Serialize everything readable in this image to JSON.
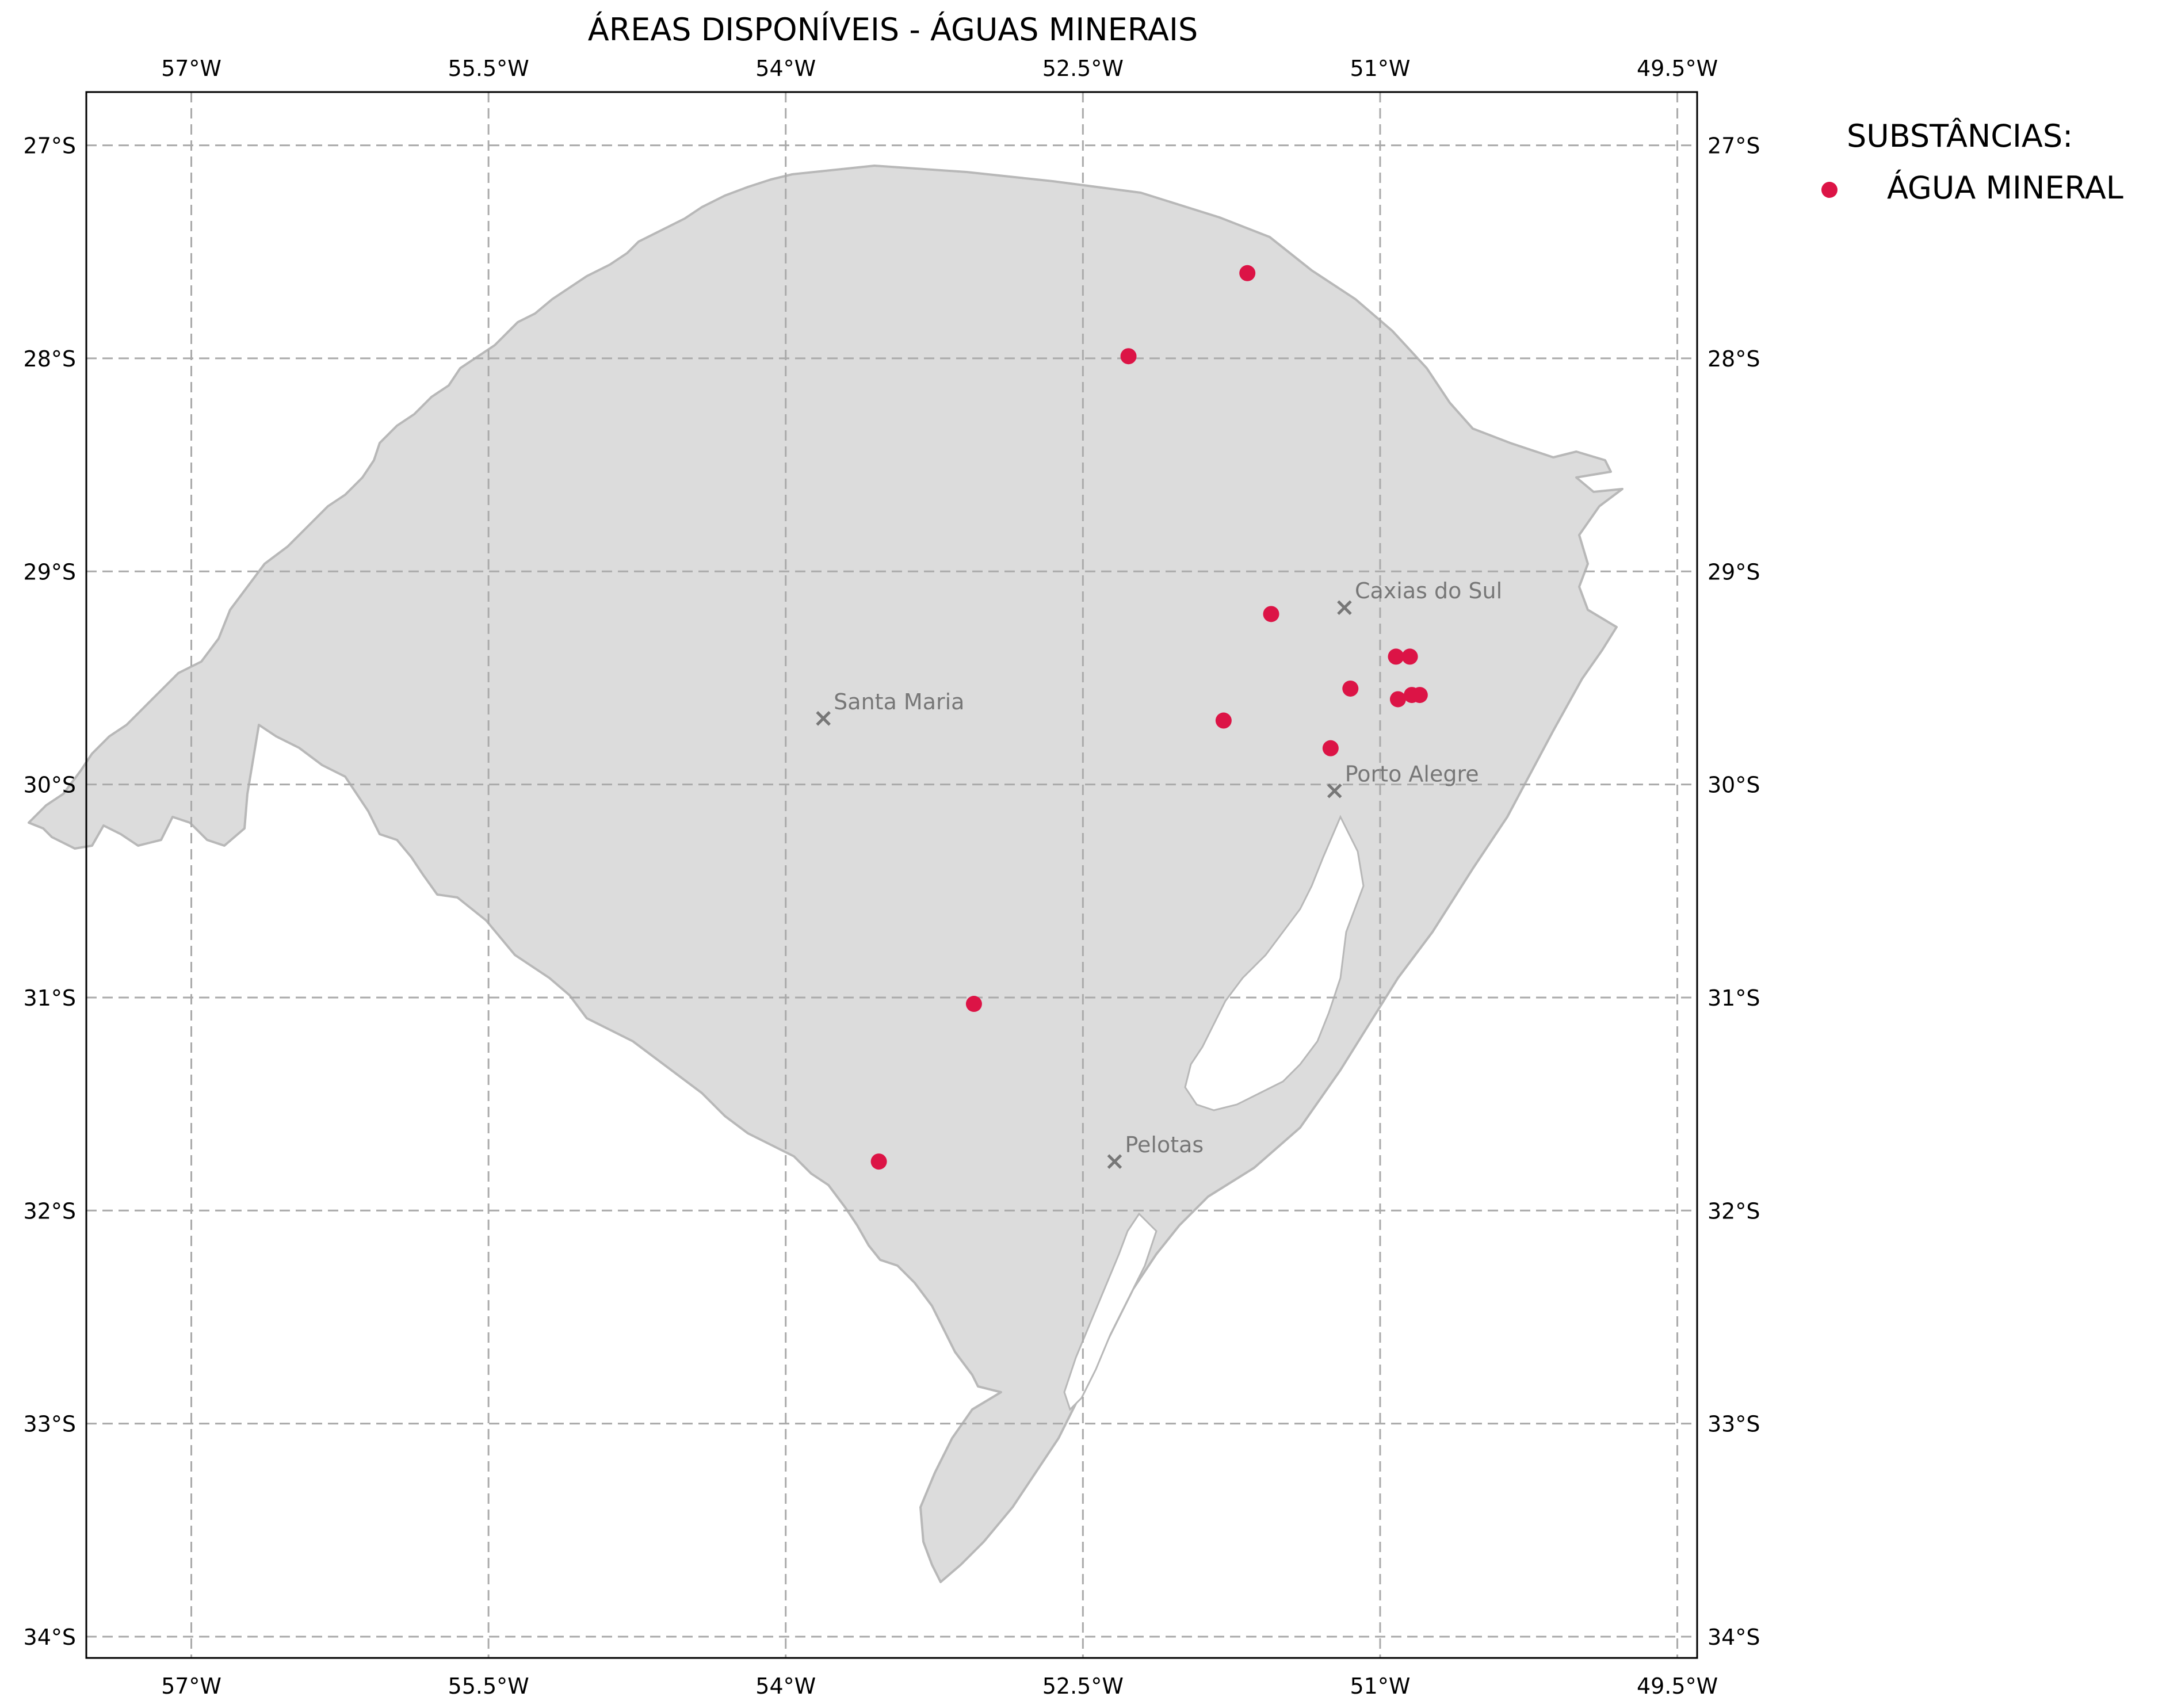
{
  "map": {
    "title": "ÁREAS DISPONÍVEIS - ÁGUAS MINERAIS",
    "lon_range": [
      -57.53,
      -49.4
    ],
    "lat_range": [
      -34.1,
      -26.75
    ],
    "lon_ticks": [
      {
        "value": -57.0,
        "label": "57°W"
      },
      {
        "value": -55.5,
        "label": "55.5°W"
      },
      {
        "value": -54.0,
        "label": "54°W"
      },
      {
        "value": -52.5,
        "label": "52.5°W"
      },
      {
        "value": -51.0,
        "label": "51°W"
      },
      {
        "value": -49.5,
        "label": "49.5°W"
      }
    ],
    "lat_ticks": [
      {
        "value": -27,
        "label": "27°S"
      },
      {
        "value": -28,
        "label": "28°S"
      },
      {
        "value": -29,
        "label": "29°S"
      },
      {
        "value": -30,
        "label": "30°S"
      },
      {
        "value": -31,
        "label": "31°S"
      },
      {
        "value": -32,
        "label": "32°S"
      },
      {
        "value": -33,
        "label": "33°S"
      },
      {
        "value": -34,
        "label": "34°S"
      }
    ],
    "gridlines": true,
    "land_color": "#dcdcdc",
    "border_color": "#b8b8b8",
    "point_color": "#dc1446",
    "city_color": "#777777"
  },
  "legend": {
    "title": "SUBSTÂNCIAS:",
    "items": [
      {
        "label": "ÁGUA MINERAL",
        "color": "#dc1446"
      }
    ],
    "placement": "top-right, outside map"
  },
  "cities": [
    {
      "name": "Caxias do Sul",
      "lon": -51.18,
      "lat": -29.17
    },
    {
      "name": "Santa Maria",
      "lon": -53.81,
      "lat": -29.69
    },
    {
      "name": "Porto Alegre",
      "lon": -51.23,
      "lat": -30.03
    },
    {
      "name": "Pelotas",
      "lon": -52.34,
      "lat": -31.77
    }
  ],
  "points": [
    {
      "lon": -51.67,
      "lat": -27.6
    },
    {
      "lon": -52.27,
      "lat": -27.99
    },
    {
      "lon": -51.55,
      "lat": -29.2
    },
    {
      "lon": -50.92,
      "lat": -29.4
    },
    {
      "lon": -50.85,
      "lat": -29.4
    },
    {
      "lon": -51.15,
      "lat": -29.55
    },
    {
      "lon": -50.91,
      "lat": -29.6
    },
    {
      "lon": -50.84,
      "lat": -29.58
    },
    {
      "lon": -50.8,
      "lat": -29.58
    },
    {
      "lon": -51.79,
      "lat": -29.7
    },
    {
      "lon": -51.25,
      "lat": -29.83
    },
    {
      "lon": -53.05,
      "lat": -31.03
    },
    {
      "lon": -53.53,
      "lat": -31.77
    }
  ]
}
